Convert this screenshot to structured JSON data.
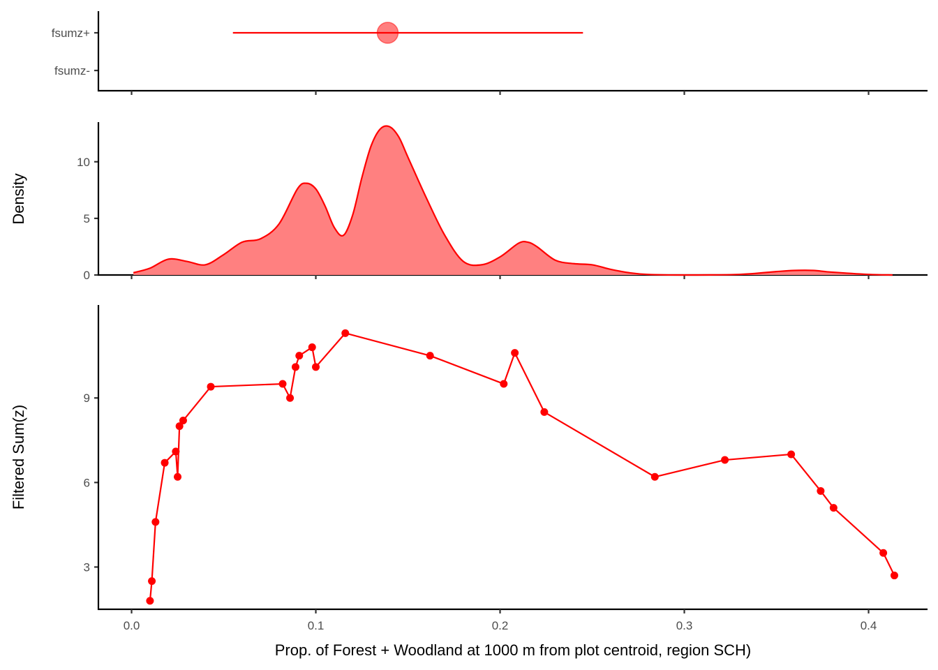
{
  "colors": {
    "series": "#ff0000",
    "series_fill": "#ff8080",
    "axis": "#000000",
    "tick_text": "#4d4d4d"
  },
  "chart_data": [
    {
      "panel": "top",
      "type": "interval",
      "categories": [
        "fsumz-",
        "fsumz+"
      ],
      "interval": {
        "category": "fsumz+",
        "low": 0.055,
        "point": 0.139,
        "high": 0.245
      }
    },
    {
      "panel": "middle",
      "type": "area",
      "ylabel": "Density",
      "yticks": [
        0,
        5,
        10
      ],
      "ylim": [
        0,
        13.5
      ],
      "x": [
        0.001,
        0.01,
        0.02,
        0.03,
        0.04,
        0.05,
        0.06,
        0.07,
        0.08,
        0.09,
        0.095,
        0.1,
        0.105,
        0.11,
        0.115,
        0.12,
        0.125,
        0.13,
        0.135,
        0.14,
        0.145,
        0.15,
        0.16,
        0.17,
        0.18,
        0.19,
        0.2,
        0.21,
        0.215,
        0.22,
        0.23,
        0.24,
        0.25,
        0.26,
        0.27,
        0.28,
        0.3,
        0.33,
        0.35,
        0.36,
        0.37,
        0.38,
        0.4,
        0.413
      ],
      "y": [
        0.2,
        0.6,
        1.4,
        1.2,
        0.9,
        1.8,
        2.9,
        3.2,
        4.5,
        7.6,
        8.1,
        7.6,
        6.1,
        4.2,
        3.5,
        5.3,
        8.6,
        11.4,
        12.9,
        13.1,
        12.2,
        10.4,
        6.8,
        3.5,
        1.2,
        0.9,
        1.6,
        2.8,
        2.9,
        2.5,
        1.3,
        1.0,
        0.9,
        0.5,
        0.2,
        0.05,
        0.0,
        0.05,
        0.3,
        0.4,
        0.4,
        0.25,
        0.05,
        0.0
      ]
    },
    {
      "panel": "bottom",
      "type": "line",
      "ylabel": "Filtered Sum(z)",
      "yticks": [
        3,
        6,
        9
      ],
      "ylim": [
        1.5,
        12.3
      ],
      "x": [
        0.01,
        0.011,
        0.013,
        0.018,
        0.024,
        0.025,
        0.026,
        0.028,
        0.043,
        0.082,
        0.086,
        0.089,
        0.091,
        0.098,
        0.1,
        0.116,
        0.162,
        0.202,
        0.208,
        0.224,
        0.284,
        0.322,
        0.358,
        0.374,
        0.381,
        0.408,
        0.414
      ],
      "y": [
        1.8,
        2.5,
        4.6,
        6.7,
        7.1,
        6.2,
        8.0,
        8.2,
        9.4,
        9.5,
        9.0,
        10.1,
        10.5,
        10.8,
        10.1,
        11.3,
        10.5,
        9.5,
        10.6,
        8.5,
        6.2,
        6.8,
        7.0,
        5.7,
        5.1,
        3.5,
        2.7
      ]
    }
  ],
  "x_axis": {
    "xlabel": "Prop. of Forest + Woodland at 1000 m from plot centroid, region SCH)",
    "ticks": [
      0.0,
      0.1,
      0.2,
      0.3,
      0.4
    ],
    "tick_labels": [
      "0.0",
      "0.1",
      "0.2",
      "0.3",
      "0.4"
    ],
    "xlim": [
      -0.018,
      0.432
    ]
  }
}
